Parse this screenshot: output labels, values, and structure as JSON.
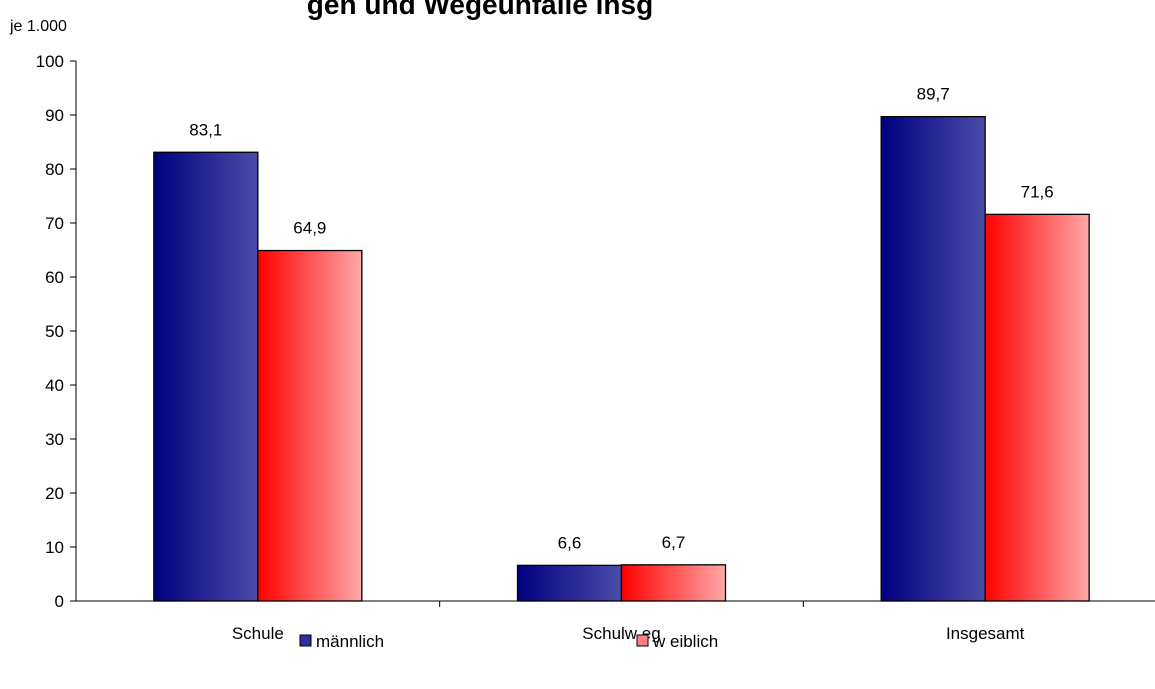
{
  "chart_data": {
    "type": "bar",
    "title": "gen und Wegeunfälle insg",
    "ylabel": "je 1.000",
    "xlabel": "",
    "categories": [
      "Schule",
      "Schulw eg",
      "Insgesamt"
    ],
    "series": [
      {
        "name": "männlich",
        "values": [
          83.1,
          6.6,
          89.7
        ],
        "labels": [
          "83,1",
          "6,6",
          "89,7"
        ],
        "gradient": [
          "#000080",
          "#4B4BA8"
        ]
      },
      {
        "name": "w eiblich",
        "values": [
          64.9,
          6.7,
          71.6
        ],
        "labels": [
          "64,9",
          "6,7",
          "71,6"
        ],
        "gradient": [
          "#FF0000",
          "#FFA8A8"
        ]
      }
    ],
    "ylim": [
      0,
      100
    ],
    "yticks": [
      0,
      10,
      20,
      30,
      40,
      50,
      60,
      70,
      80,
      90,
      100
    ],
    "grid": false,
    "legend": "bottom"
  }
}
